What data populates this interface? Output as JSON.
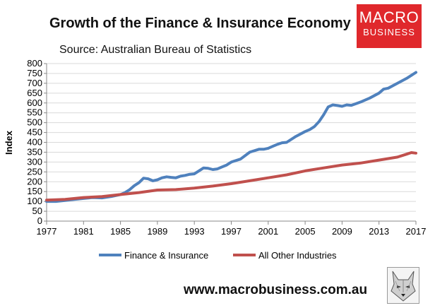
{
  "header": {
    "title": "Growth of the Finance & Insurance Economy",
    "source": "Source: Australian Bureau of Statistics"
  },
  "logo": {
    "line1": "MACRO",
    "line2": "BUSINESS",
    "color": "#e0282c"
  },
  "footer": {
    "url": "www.macrobusiness.com.au",
    "icon": "wolf-icon"
  },
  "chart_data": {
    "type": "line",
    "ylabel": "Index",
    "xlabel": "",
    "xlim": [
      1977,
      2017
    ],
    "ylim": [
      0,
      800
    ],
    "y_ticks": [
      0,
      50,
      100,
      150,
      200,
      250,
      300,
      350,
      400,
      450,
      500,
      550,
      600,
      650,
      700,
      750,
      800
    ],
    "x_ticks": [
      1977,
      1981,
      1985,
      1989,
      1993,
      1997,
      2001,
      2005,
      2009,
      2013,
      2017
    ],
    "grid": "horizontal",
    "legend": "bottom",
    "series": [
      {
        "name": "Finance & Insurance",
        "color": "#4f81bd",
        "x": [
          1977,
          1978,
          1979,
          1980,
          1981,
          1982,
          1983,
          1984,
          1985,
          1985.5,
          1986,
          1986.5,
          1987,
          1987.5,
          1988,
          1988.5,
          1989,
          1989.5,
          1990,
          1990.5,
          1991,
          1991.5,
          1992,
          1992.5,
          1993,
          1993.5,
          1994,
          1994.5,
          1995,
          1995.5,
          1996,
          1996.5,
          1997,
          1998,
          1999,
          2000,
          2000.5,
          2001,
          2001.5,
          2002,
          2002.5,
          2003,
          2004,
          2005,
          2005.5,
          2006,
          2006.5,
          2007,
          2007.5,
          2008,
          2008.5,
          2009,
          2009.5,
          2010,
          2011,
          2012,
          2013,
          2013.5,
          2014,
          2015,
          2016,
          2016.5,
          2017
        ],
        "values": [
          100,
          100,
          105,
          110,
          115,
          120,
          118,
          125,
          135,
          145,
          160,
          180,
          195,
          218,
          215,
          205,
          210,
          220,
          225,
          222,
          220,
          228,
          232,
          238,
          240,
          255,
          270,
          268,
          262,
          265,
          275,
          285,
          300,
          315,
          350,
          365,
          365,
          370,
          380,
          390,
          398,
          400,
          430,
          455,
          465,
          480,
          505,
          540,
          580,
          590,
          587,
          583,
          590,
          588,
          605,
          625,
          650,
          670,
          675,
          700,
          725,
          740,
          755
        ]
      },
      {
        "name": "All Other Industries",
        "color": "#c0504d",
        "x": [
          1977,
          1979,
          1981,
          1983,
          1985,
          1987,
          1989,
          1991,
          1993,
          1995,
          1997,
          1999,
          2001,
          2003,
          2005,
          2007,
          2009,
          2011,
          2013,
          2015,
          2016,
          2016.5,
          2017
        ],
        "values": [
          107,
          110,
          120,
          125,
          135,
          145,
          158,
          160,
          168,
          178,
          190,
          205,
          220,
          235,
          255,
          270,
          285,
          295,
          310,
          325,
          340,
          348,
          345
        ]
      }
    ]
  }
}
